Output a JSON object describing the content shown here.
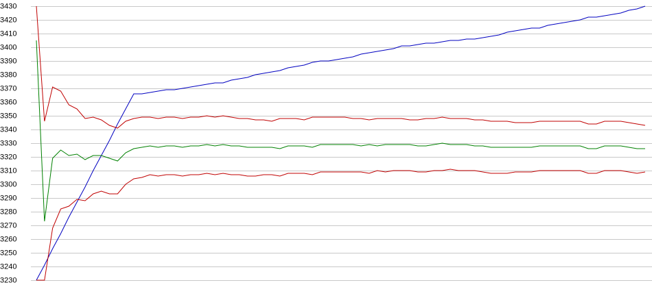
{
  "chart_data": {
    "type": "line",
    "ylim": [
      3230,
      3430
    ],
    "yticks": [
      3230,
      3240,
      3250,
      3260,
      3270,
      3280,
      3290,
      3300,
      3310,
      3320,
      3330,
      3340,
      3350,
      3360,
      3370,
      3380,
      3390,
      3400,
      3410,
      3420,
      3430
    ],
    "grid": true,
    "series": [
      {
        "color": "#0000c0",
        "values": [
          3230,
          3241,
          3253,
          3264,
          3276,
          3287,
          3298,
          3310,
          3321,
          3332,
          3344,
          3355,
          3366,
          3366,
          3367,
          3368,
          3369,
          3369,
          3370,
          3371,
          3372,
          3373,
          3374,
          3374,
          3376,
          3377,
          3378,
          3380,
          3381,
          3382,
          3383,
          3385,
          3386,
          3387,
          3389,
          3390,
          3390,
          3391,
          3392,
          3393,
          3395,
          3396,
          3397,
          3398,
          3399,
          3401,
          3401,
          3402,
          3403,
          3403,
          3404,
          3405,
          3405,
          3406,
          3406,
          3407,
          3408,
          3409,
          3411,
          3412,
          3413,
          3414,
          3414,
          3416,
          3417,
          3418,
          3419,
          3420,
          3422,
          3422,
          3423,
          3424,
          3425,
          3427,
          3428,
          3430
        ]
      },
      {
        "color": "#c00000",
        "values": [
          3430,
          3346,
          3371,
          3368,
          3358,
          3355,
          3348,
          3349,
          3347,
          3343,
          3341,
          3346,
          3348,
          3349,
          3349,
          3348,
          3349,
          3349,
          3348,
          3349,
          3349,
          3350,
          3349,
          3350,
          3349,
          3348,
          3348,
          3347,
          3347,
          3346,
          3348,
          3348,
          3348,
          3347,
          3349,
          3349,
          3349,
          3349,
          3349,
          3348,
          3348,
          3347,
          3348,
          3348,
          3348,
          3348,
          3347,
          3347,
          3348,
          3348,
          3349,
          3348,
          3348,
          3348,
          3347,
          3347,
          3346,
          3346,
          3346,
          3345,
          3345,
          3345,
          3346,
          3346,
          3346,
          3346,
          3346,
          3346,
          3344,
          3344,
          3346,
          3346,
          3346,
          3345,
          3344,
          3343
        ]
      },
      {
        "color": "#008000",
        "values": [
          3405,
          3273,
          3319,
          3325,
          3321,
          3322,
          3318,
          3321,
          3321,
          3319,
          3317,
          3323,
          3326,
          3327,
          3328,
          3327,
          3328,
          3328,
          3327,
          3328,
          3328,
          3329,
          3328,
          3329,
          3328,
          3328,
          3327,
          3327,
          3327,
          3327,
          3326,
          3328,
          3328,
          3328,
          3327,
          3329,
          3329,
          3329,
          3329,
          3329,
          3328,
          3329,
          3328,
          3329,
          3329,
          3329,
          3329,
          3328,
          3328,
          3329,
          3330,
          3329,
          3329,
          3329,
          3328,
          3328,
          3327,
          3327,
          3327,
          3327,
          3327,
          3327,
          3328,
          3328,
          3328,
          3328,
          3328,
          3328,
          3326,
          3326,
          3328,
          3328,
          3328,
          3327,
          3326,
          3326
        ]
      },
      {
        "color": "#c00000",
        "values": [
          3230,
          3230,
          3268,
          3282,
          3284,
          3289,
          3288,
          3293,
          3295,
          3293,
          3293,
          3300,
          3304,
          3305,
          3307,
          3306,
          3307,
          3307,
          3306,
          3307,
          3307,
          3308,
          3307,
          3308,
          3307,
          3307,
          3306,
          3306,
          3307,
          3307,
          3306,
          3308,
          3308,
          3308,
          3307,
          3309,
          3309,
          3309,
          3309,
          3309,
          3309,
          3308,
          3310,
          3309,
          3310,
          3310,
          3310,
          3309,
          3309,
          3310,
          3310,
          3311,
          3310,
          3310,
          3310,
          3309,
          3308,
          3308,
          3308,
          3309,
          3309,
          3309,
          3310,
          3310,
          3310,
          3310,
          3310,
          3310,
          3308,
          3308,
          3310,
          3310,
          3310,
          3309,
          3308,
          3309
        ]
      }
    ]
  }
}
